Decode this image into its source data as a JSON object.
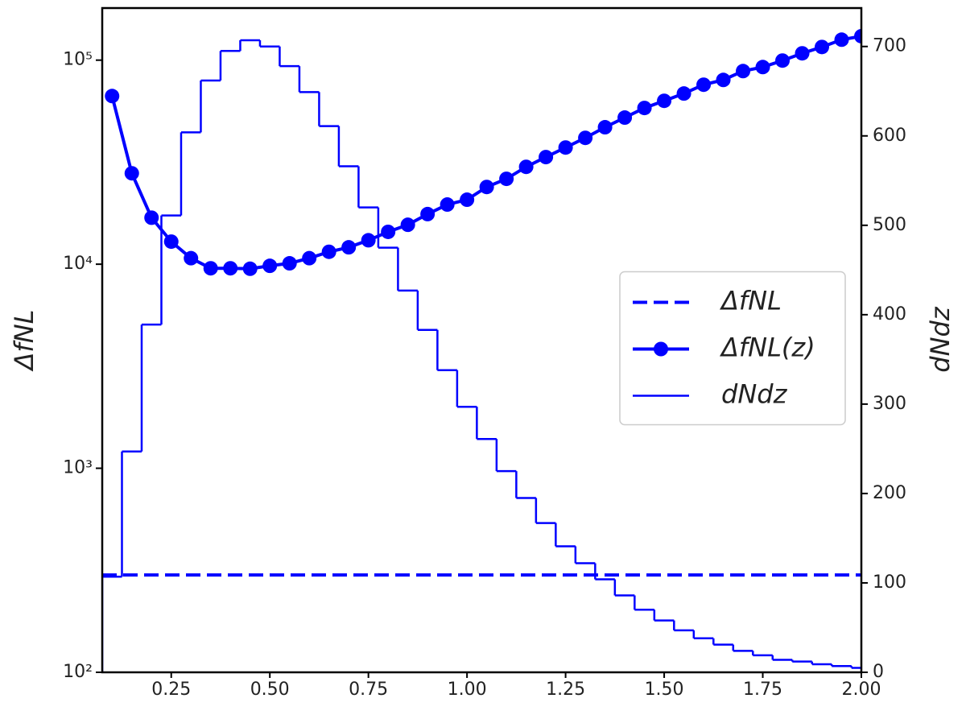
{
  "chart_data": {
    "type": "combo",
    "ylabel": "ΔfNL",
    "y2label": "dNdz",
    "xlim": [
      0.075,
      2.0
    ],
    "xticks": [
      0.25,
      {
        "value": 0.5,
        "label": "0.50"
      },
      0.75,
      {
        "value": 1.0,
        "label": "1.00"
      },
      1.25,
      {
        "value": 1.5,
        "label": "1.50"
      },
      1.75,
      {
        "value": 2.0,
        "label": "2.00"
      }
    ],
    "ylim": [
      100,
      180000
    ],
    "yscale": "log",
    "yticks": [
      {
        "value": 100,
        "label": "10²"
      },
      {
        "value": 1000,
        "label": "10³"
      },
      {
        "value": 10000,
        "label": "10⁴"
      },
      {
        "value": 100000,
        "label": "10⁵"
      }
    ],
    "y2lim": [
      0,
      743
    ],
    "y2ticks": [
      0,
      100,
      200,
      300,
      400,
      500,
      600,
      700
    ],
    "legend": "center right",
    "series": [
      {
        "name": "ΔfNL",
        "type": "hline",
        "color": "#0000ff",
        "linestyle": "dashed",
        "values": [
          300
        ]
      },
      {
        "name": "ΔfNL(z)",
        "type": "line",
        "color": "#0000ff",
        "marker": "circle",
        "x": [
          0.1,
          0.15,
          0.2,
          0.25,
          0.3,
          0.35,
          0.4,
          0.45,
          0.5,
          0.55,
          0.6,
          0.65,
          0.7,
          0.75,
          0.8,
          0.85,
          0.9,
          0.95,
          1.0,
          1.05,
          1.1,
          1.15,
          1.2,
          1.25,
          1.3,
          1.35,
          1.4,
          1.45,
          1.5,
          1.55,
          1.6,
          1.65,
          1.7,
          1.75,
          1.8,
          1.85,
          1.9,
          1.95,
          2.0
        ],
        "values": [
          66700,
          27900,
          16900,
          12900,
          10700,
          9550,
          9550,
          9500,
          9820,
          10100,
          10700,
          11500,
          12100,
          13100,
          14400,
          15600,
          17600,
          19600,
          20700,
          23900,
          26200,
          30000,
          33500,
          37300,
          41600,
          46900,
          52300,
          58300,
          63200,
          68600,
          75800,
          80000,
          88400,
          92500,
          99500,
          108000,
          116000,
          126000,
          131000
        ]
      },
      {
        "name": "dNdz",
        "type": "step",
        "axis": "y2",
        "color": "#0000ff",
        "bins": [
          0.075,
          0.125,
          0.175,
          0.225,
          0.275,
          0.325,
          0.375,
          0.425,
          0.475,
          0.525,
          0.575,
          0.625,
          0.675,
          0.725,
          0.775,
          0.825,
          0.875,
          0.925,
          0.975,
          1.025,
          1.075,
          1.125,
          1.175,
          1.225,
          1.275,
          1.325,
          1.375,
          1.425,
          1.475,
          1.525,
          1.575,
          1.625,
          1.675,
          1.725,
          1.775,
          1.825,
          1.875,
          1.925,
          1.975,
          2.025
        ],
        "values": [
          107,
          247,
          389,
          511,
          604,
          662,
          695,
          707,
          700,
          678,
          649,
          611,
          566,
          520,
          475,
          427,
          383,
          338,
          297,
          261,
          225,
          195,
          167,
          141,
          122,
          104,
          86,
          70,
          58,
          47,
          38,
          31,
          24,
          19,
          14,
          12,
          9,
          7,
          5
        ]
      }
    ]
  }
}
